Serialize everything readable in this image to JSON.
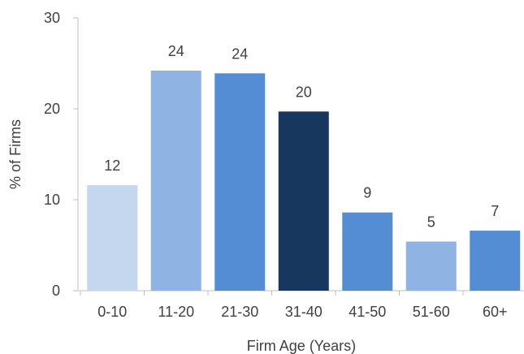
{
  "chart_data": {
    "type": "bar",
    "title": "",
    "xlabel": "Firm Age (Years)",
    "ylabel": "% of Firms",
    "categories": [
      "0-10",
      "11-20",
      "21-30",
      "31-40",
      "41-50",
      "51-60",
      "60+"
    ],
    "values": [
      11.6,
      24.2,
      23.9,
      19.7,
      8.6,
      5.4,
      6.6
    ],
    "data_labels": [
      "12",
      "24",
      "24",
      "20",
      "9",
      "5",
      "7"
    ],
    "bar_colors": [
      "#c5d7ef",
      "#8fb4e3",
      "#548dd4",
      "#17375e",
      "#548dd4",
      "#8fb4e3",
      "#548dd4"
    ],
    "ylim": [
      0,
      30
    ],
    "yticks": [
      0,
      10,
      20,
      30
    ],
    "ytick_labels": [
      "0",
      "10",
      "20",
      "30"
    ],
    "grid": false,
    "legend": false,
    "axis_color": "#bfbfbf"
  }
}
